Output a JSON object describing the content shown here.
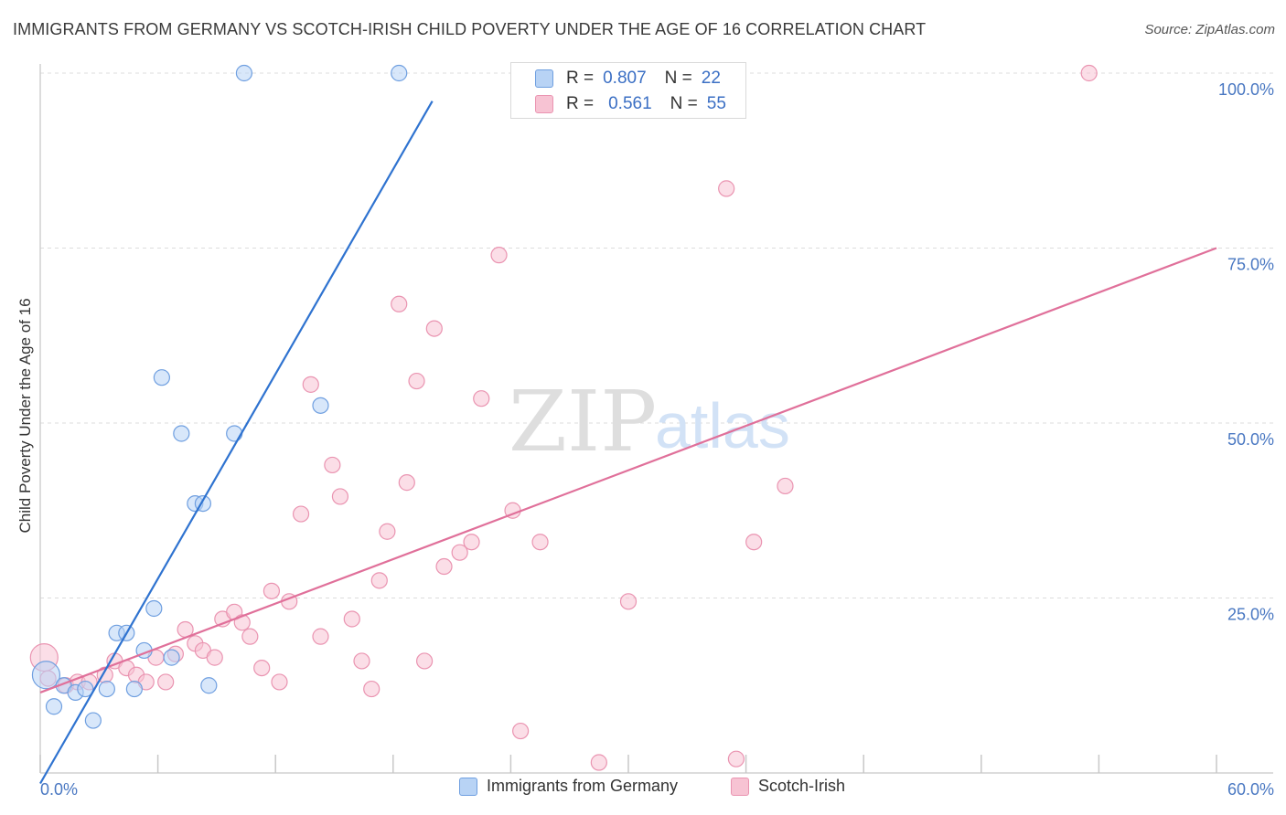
{
  "title": "IMMIGRANTS FROM GERMANY VS SCOTCH-IRISH CHILD POVERTY UNDER THE AGE OF 16 CORRELATION CHART",
  "source": "Source: ZipAtlas.com",
  "watermark": {
    "part1": "ZIP",
    "part2": "atlas"
  },
  "colors": {
    "blue_fill": "#b8d3f5",
    "blue_stroke": "#6f9fe0",
    "blue_line": "#2f73d0",
    "pink_fill": "#f7c3d3",
    "pink_stroke": "#ea94b1",
    "pink_line": "#e0709a",
    "tick_text": "#4a78c2",
    "grid": "#dcdcdc"
  },
  "stats": [
    {
      "r_label": "R =",
      "r_value": "0.807",
      "n_label": "N =",
      "n_value": "22"
    },
    {
      "r_label": "R =",
      "r_value": "0.561",
      "n_label": "N =",
      "n_value": "55"
    }
  ],
  "chart_data": {
    "type": "scatter",
    "title": "IMMIGRANTS FROM GERMANY VS SCOTCH-IRISH CHILD POVERTY UNDER THE AGE OF 16 CORRELATION CHART",
    "xlabel": "",
    "ylabel": "Child Poverty Under the Age of 16",
    "xlim": [
      0,
      60
    ],
    "ylim": [
      0,
      100
    ],
    "x_tick_labels": [
      "0.0%",
      "60.0%"
    ],
    "y_ticks": [
      25,
      50,
      75,
      100
    ],
    "y_tick_labels": [
      "25.0%",
      "50.0%",
      "75.0%",
      "100.0%"
    ],
    "grid": true,
    "legend_position": "bottom-center",
    "series": [
      {
        "name": "Immigrants from Germany",
        "color": "#6f9fe0",
        "r": 0.807,
        "n": 22,
        "trendline": {
          "x": [
            0,
            20.0
          ],
          "y": [
            -1.5,
            96.0
          ]
        },
        "points": [
          [
            0.3,
            14.0
          ],
          [
            0.7,
            9.5
          ],
          [
            1.2,
            12.5
          ],
          [
            1.8,
            11.5
          ],
          [
            2.3,
            12.0
          ],
          [
            2.7,
            7.5
          ],
          [
            3.4,
            12.0
          ],
          [
            3.9,
            20.0
          ],
          [
            4.4,
            20.0
          ],
          [
            4.8,
            12.0
          ],
          [
            5.3,
            17.5
          ],
          [
            5.8,
            23.5
          ],
          [
            6.2,
            56.5
          ],
          [
            6.7,
            16.5
          ],
          [
            7.2,
            48.5
          ],
          [
            7.9,
            38.5
          ],
          [
            8.3,
            38.5
          ],
          [
            8.6,
            12.5
          ],
          [
            9.9,
            48.5
          ],
          [
            10.4,
            100.0
          ],
          [
            14.3,
            52.5
          ],
          [
            18.3,
            100.0
          ]
        ]
      },
      {
        "name": "Scotch-Irish",
        "color": "#ea94b1",
        "r": 0.561,
        "n": 55,
        "trendline": {
          "x": [
            0,
            60.0
          ],
          "y": [
            11.5,
            75.0
          ]
        },
        "points": [
          [
            0.2,
            16.5
          ],
          [
            0.4,
            13.5
          ],
          [
            1.3,
            12.5
          ],
          [
            1.9,
            13.0
          ],
          [
            2.5,
            13.0
          ],
          [
            3.3,
            14.0
          ],
          [
            3.8,
            16.0
          ],
          [
            4.4,
            15.0
          ],
          [
            4.9,
            14.0
          ],
          [
            5.4,
            13.0
          ],
          [
            5.9,
            16.5
          ],
          [
            6.4,
            13.0
          ],
          [
            6.9,
            17.0
          ],
          [
            7.4,
            20.5
          ],
          [
            7.9,
            18.5
          ],
          [
            8.3,
            17.5
          ],
          [
            8.9,
            16.5
          ],
          [
            9.3,
            22.0
          ],
          [
            9.9,
            23.0
          ],
          [
            10.3,
            21.5
          ],
          [
            10.7,
            19.5
          ],
          [
            11.3,
            15.0
          ],
          [
            11.8,
            26.0
          ],
          [
            12.2,
            13.0
          ],
          [
            12.7,
            24.5
          ],
          [
            13.3,
            37.0
          ],
          [
            13.8,
            55.5
          ],
          [
            14.3,
            19.5
          ],
          [
            14.9,
            44.0
          ],
          [
            15.3,
            39.5
          ],
          [
            15.9,
            22.0
          ],
          [
            16.4,
            16.0
          ],
          [
            16.9,
            12.0
          ],
          [
            17.3,
            27.5
          ],
          [
            17.7,
            34.5
          ],
          [
            18.3,
            67.0
          ],
          [
            18.7,
            41.5
          ],
          [
            19.2,
            56.0
          ],
          [
            19.6,
            16.0
          ],
          [
            20.1,
            63.5
          ],
          [
            20.6,
            29.5
          ],
          [
            21.4,
            31.5
          ],
          [
            22.0,
            33.0
          ],
          [
            22.5,
            53.5
          ],
          [
            23.4,
            74.0
          ],
          [
            24.1,
            37.5
          ],
          [
            24.5,
            6.0
          ],
          [
            25.5,
            33.0
          ],
          [
            28.5,
            1.5
          ],
          [
            30.0,
            24.5
          ],
          [
            35.0,
            83.5
          ],
          [
            35.5,
            2.0
          ],
          [
            36.4,
            33.0
          ],
          [
            38.0,
            41.0
          ],
          [
            53.5,
            100.0
          ]
        ]
      }
    ]
  }
}
